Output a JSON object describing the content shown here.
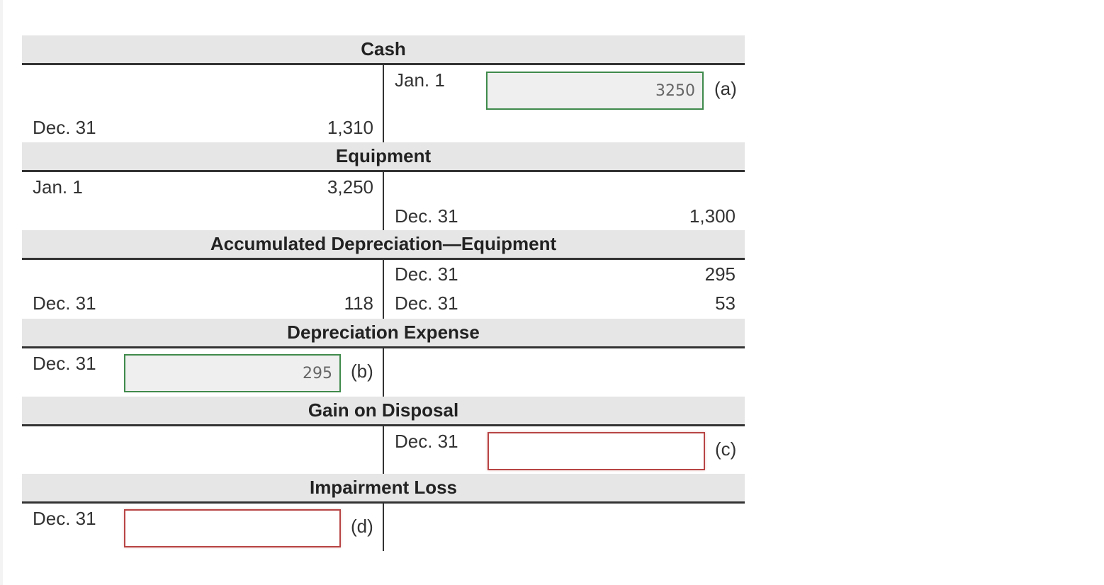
{
  "accounts": {
    "cash": {
      "title": "Cash",
      "right_date_1": "Jan. 1",
      "input_a_value": "3250",
      "label_a": "(a)",
      "left_date_1": "Dec. 31",
      "left_amount_1": "1,310"
    },
    "equipment": {
      "title": "Equipment",
      "left_date_1": "Jan. 1",
      "left_amount_1": "3,250",
      "right_date_1": "Dec. 31",
      "right_amount_1": "1,300"
    },
    "accum_dep": {
      "title": "Accumulated Depreciation—Equipment",
      "right_date_1": "Dec. 31",
      "right_amount_1": "295",
      "left_date_1": "Dec. 31",
      "left_amount_1": "118",
      "right_date_2": "Dec. 31",
      "right_amount_2": "53"
    },
    "dep_expense": {
      "title": "Depreciation Expense",
      "left_date_1": "Dec. 31",
      "input_b_value": "295",
      "label_b": "(b)"
    },
    "gain_disposal": {
      "title": "Gain on Disposal",
      "right_date_1": "Dec. 31",
      "input_c_value": "",
      "label_c": "(c)"
    },
    "impairment": {
      "title": "Impairment Loss",
      "left_date_1": "Dec. 31",
      "input_d_value": "",
      "label_d": "(d)"
    }
  },
  "colors": {
    "correct_border": "#3f8a4b",
    "incorrect_border": "#b84444",
    "header_bg": "#e6e6e6"
  }
}
